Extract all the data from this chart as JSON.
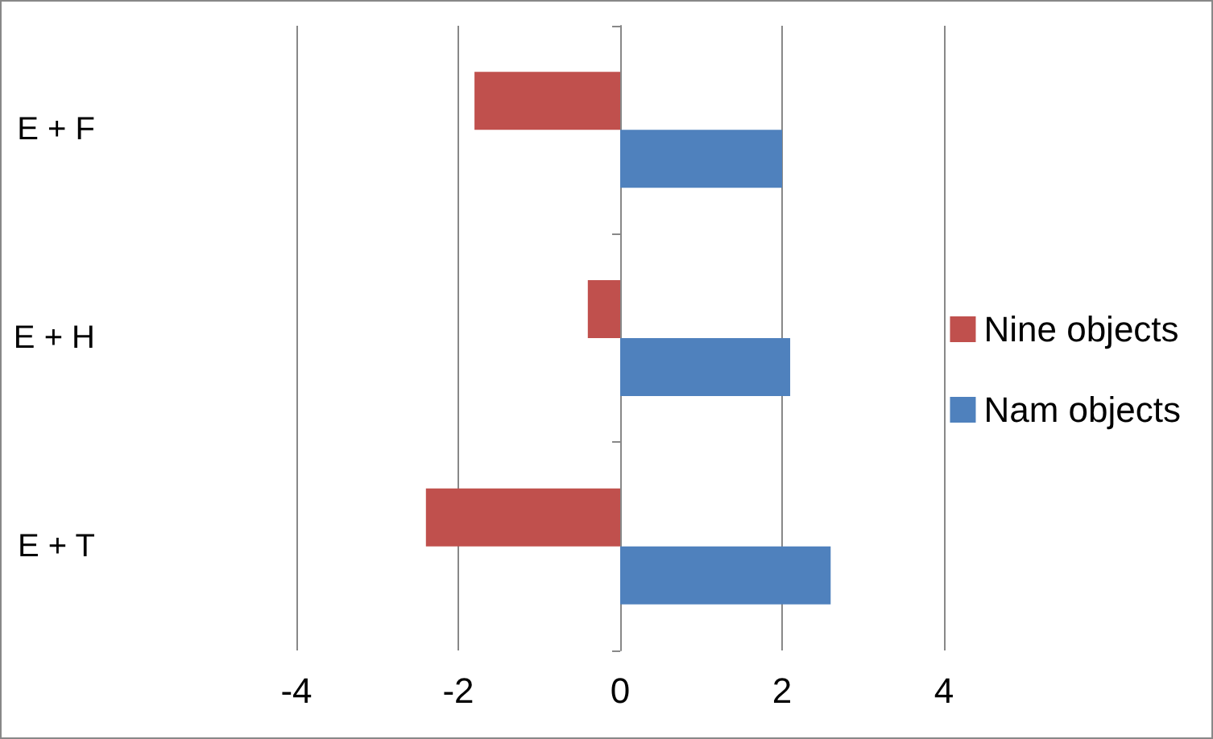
{
  "chart_data": {
    "type": "bar",
    "orientation": "horizontal",
    "categories": [
      "E + F",
      "E + H",
      "E + T"
    ],
    "series": [
      {
        "name": "Nine objects",
        "color": "#c0504d",
        "values": [
          -1.8,
          -0.4,
          -2.4
        ]
      },
      {
        "name": "Nam objects",
        "color": "#4f81bd",
        "values": [
          2.0,
          2.1,
          2.6
        ]
      }
    ],
    "xlim": [
      -4,
      4
    ],
    "xticks": [
      -4,
      -2,
      0,
      2,
      4
    ],
    "grid": "x",
    "legend": "right"
  }
}
